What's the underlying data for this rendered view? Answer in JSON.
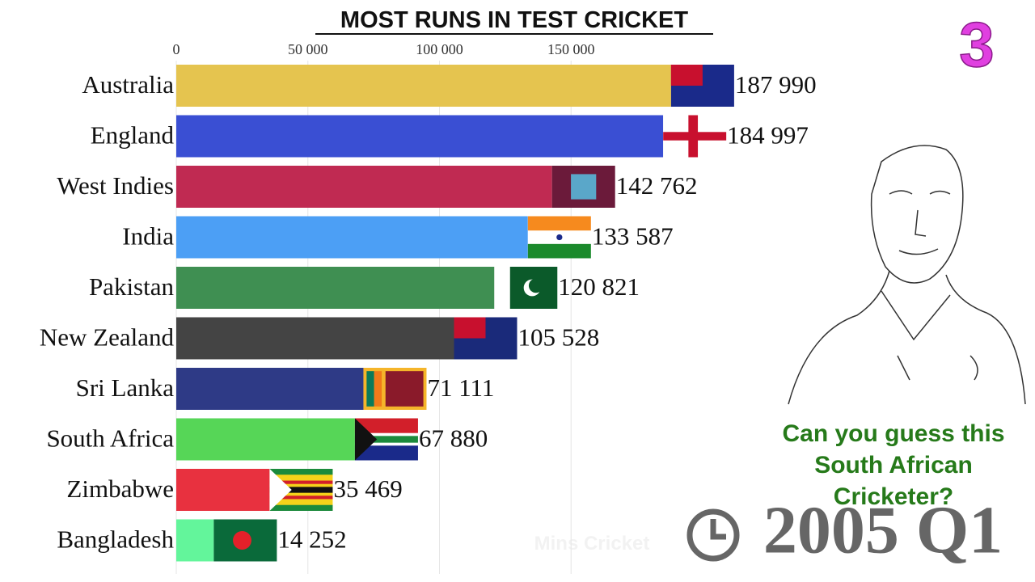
{
  "chart_data": {
    "type": "bar",
    "orientation": "horizontal",
    "title": "MOST RUNS IN TEST CRICKET",
    "categories": [
      "Australia",
      "England",
      "West Indies",
      "India",
      "Pakistan",
      "New Zealand",
      "Sri Lanka",
      "South Africa",
      "Zimbabwe",
      "Bangladesh"
    ],
    "values": [
      187990,
      184997,
      142762,
      133587,
      120821,
      105528,
      71111,
      67880,
      35469,
      14252
    ],
    "value_labels": [
      "187 990",
      "184 997",
      "142 762",
      "133 587",
      "120 821",
      "105 528",
      "71 111",
      "67 880",
      "35 469",
      "14 252"
    ],
    "colors": [
      "#e5c44f",
      "#3a4fd3",
      "#c02a52",
      "#4c9ff5",
      "#3f8f52",
      "#444444",
      "#2e3a86",
      "#56d657",
      "#e8313f",
      "#63f59b"
    ],
    "xlim": [
      0,
      200000
    ],
    "xticks": [
      0,
      {
        "value": 50000,
        "label": "50 000"
      },
      {
        "value": 100000,
        "label": "100 000"
      },
      {
        "value": 150000,
        "label": "150 000"
      }
    ],
    "grid": true,
    "period": "2005 Q1",
    "countdown": "3",
    "question": [
      "Can you guess this",
      "South African",
      "Cricketer?"
    ],
    "watermark": "Mins Cricket"
  }
}
